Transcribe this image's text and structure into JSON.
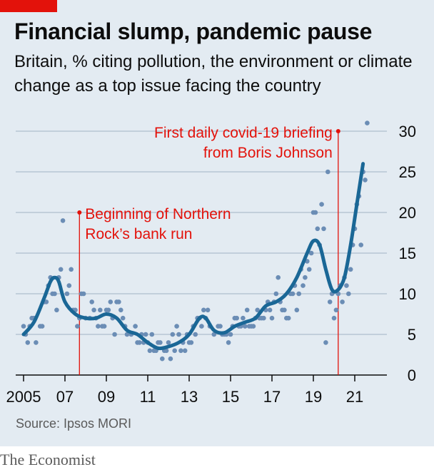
{
  "header": {
    "title": "Financial slump, pandemic pause",
    "subtitle": "Britain, % citing pollution, the environment or climate change as a top issue facing the country"
  },
  "footer": {
    "source": "Source: Ipsos MORI",
    "brand": "The Economist"
  },
  "colors": {
    "background": "#e3ebf2",
    "line": "#1a6796",
    "dots": "#6b8db5",
    "annotation": "#e3120b",
    "grid": "#b7c6d3",
    "brand_tag": "#e3120b"
  },
  "chart_data": {
    "type": "scatter",
    "title": "Financial slump, pandemic pause",
    "subtitle": "Britain, % citing pollution, the environment or climate change as a top issue facing the country",
    "xlim": [
      2004.6,
      2022.6
    ],
    "ylim": [
      0,
      32
    ],
    "y_ticks": [
      0,
      5,
      10,
      15,
      20,
      25,
      30
    ],
    "x_ticks": [
      {
        "value": 2005,
        "label": "2005"
      },
      {
        "value": 2007,
        "label": "07"
      },
      {
        "value": 2009,
        "label": "09"
      },
      {
        "value": 2011,
        "label": "11"
      },
      {
        "value": 2013,
        "label": "13"
      },
      {
        "value": 2015,
        "label": "15"
      },
      {
        "value": 2017,
        "label": "17"
      },
      {
        "value": 2019,
        "label": "19"
      },
      {
        "value": 2021,
        "label": "21"
      }
    ],
    "grid": "horizontal",
    "annotations": [
      {
        "x": 2007.7,
        "y": 20,
        "lines": [
          "Beginning of Northern",
          "Rock’s bank run"
        ]
      },
      {
        "x": 2020.2,
        "y": 30,
        "lines": [
          "First daily covid-19 briefing",
          "from Boris Johnson"
        ]
      }
    ],
    "series": [
      {
        "kind": "points",
        "points": [
          [
            2005.0,
            6
          ],
          [
            2005.1,
            5
          ],
          [
            2005.2,
            4
          ],
          [
            2005.3,
            6
          ],
          [
            2005.4,
            7
          ],
          [
            2005.5,
            7
          ],
          [
            2005.6,
            4
          ],
          [
            2005.8,
            6
          ],
          [
            2005.9,
            6
          ],
          [
            2006.0,
            9
          ],
          [
            2006.1,
            9
          ],
          [
            2006.2,
            11
          ],
          [
            2006.3,
            12
          ],
          [
            2006.4,
            10
          ],
          [
            2006.5,
            10
          ],
          [
            2006.6,
            8
          ],
          [
            2006.7,
            12
          ],
          [
            2006.8,
            13
          ],
          [
            2006.9,
            19
          ],
          [
            2007.1,
            10
          ],
          [
            2007.2,
            11
          ],
          [
            2007.3,
            13
          ],
          [
            2007.4,
            8
          ],
          [
            2007.5,
            8
          ],
          [
            2007.6,
            6
          ],
          [
            2007.7,
            7
          ],
          [
            2007.8,
            10
          ],
          [
            2007.9,
            10
          ],
          [
            2008.0,
            7
          ],
          [
            2008.2,
            7
          ],
          [
            2008.3,
            9
          ],
          [
            2008.4,
            8
          ],
          [
            2008.5,
            7
          ],
          [
            2008.6,
            6
          ],
          [
            2008.7,
            8
          ],
          [
            2008.8,
            6
          ],
          [
            2008.9,
            6
          ],
          [
            2009.0,
            8
          ],
          [
            2009.1,
            8
          ],
          [
            2009.2,
            9
          ],
          [
            2009.3,
            7
          ],
          [
            2009.4,
            5
          ],
          [
            2009.5,
            9
          ],
          [
            2009.6,
            9
          ],
          [
            2009.7,
            8
          ],
          [
            2009.8,
            7
          ],
          [
            2009.9,
            6
          ],
          [
            2010.0,
            5
          ],
          [
            2010.2,
            5
          ],
          [
            2010.4,
            6
          ],
          [
            2010.5,
            4
          ],
          [
            2010.6,
            4
          ],
          [
            2010.7,
            5
          ],
          [
            2010.8,
            4
          ],
          [
            2010.9,
            5
          ],
          [
            2011.0,
            4
          ],
          [
            2011.1,
            3
          ],
          [
            2011.2,
            5
          ],
          [
            2011.3,
            3
          ],
          [
            2011.4,
            3
          ],
          [
            2011.5,
            4
          ],
          [
            2011.6,
            4
          ],
          [
            2011.7,
            2
          ],
          [
            2011.8,
            3
          ],
          [
            2011.9,
            3
          ],
          [
            2012.0,
            4
          ],
          [
            2012.1,
            2
          ],
          [
            2012.2,
            5
          ],
          [
            2012.3,
            3
          ],
          [
            2012.4,
            6
          ],
          [
            2012.5,
            5
          ],
          [
            2012.6,
            3
          ],
          [
            2012.7,
            4
          ],
          [
            2012.8,
            3
          ],
          [
            2012.9,
            5
          ],
          [
            2013.0,
            4
          ],
          [
            2013.1,
            4
          ],
          [
            2013.2,
            6
          ],
          [
            2013.3,
            5
          ],
          [
            2013.4,
            7
          ],
          [
            2013.5,
            7
          ],
          [
            2013.6,
            6
          ],
          [
            2013.7,
            8
          ],
          [
            2013.8,
            7
          ],
          [
            2013.9,
            8
          ],
          [
            2014.0,
            6
          ],
          [
            2014.2,
            5
          ],
          [
            2014.4,
            6
          ],
          [
            2014.5,
            6
          ],
          [
            2014.6,
            5
          ],
          [
            2014.7,
            5
          ],
          [
            2014.8,
            5
          ],
          [
            2014.9,
            4
          ],
          [
            2015.0,
            5
          ],
          [
            2015.1,
            6
          ],
          [
            2015.2,
            7
          ],
          [
            2015.3,
            7
          ],
          [
            2015.4,
            6
          ],
          [
            2015.5,
            6
          ],
          [
            2015.6,
            7
          ],
          [
            2015.7,
            6
          ],
          [
            2015.8,
            8
          ],
          [
            2015.9,
            6
          ],
          [
            2016.0,
            6
          ],
          [
            2016.1,
            6
          ],
          [
            2016.2,
            7
          ],
          [
            2016.3,
            8
          ],
          [
            2016.4,
            7
          ],
          [
            2016.5,
            7
          ],
          [
            2016.6,
            7
          ],
          [
            2016.7,
            8
          ],
          [
            2016.8,
            9
          ],
          [
            2016.9,
            8
          ],
          [
            2017.0,
            7
          ],
          [
            2017.1,
            9
          ],
          [
            2017.2,
            10
          ],
          [
            2017.3,
            12
          ],
          [
            2017.4,
            9
          ],
          [
            2017.5,
            8
          ],
          [
            2017.6,
            8
          ],
          [
            2017.7,
            7
          ],
          [
            2017.8,
            7
          ],
          [
            2017.9,
            10
          ],
          [
            2018.0,
            10
          ],
          [
            2018.1,
            11
          ],
          [
            2018.2,
            8
          ],
          [
            2018.3,
            10
          ],
          [
            2018.4,
            13
          ],
          [
            2018.5,
            11
          ],
          [
            2018.6,
            12
          ],
          [
            2018.7,
            14
          ],
          [
            2018.8,
            13
          ],
          [
            2018.9,
            15
          ],
          [
            2019.0,
            20
          ],
          [
            2019.1,
            20
          ],
          [
            2019.2,
            18
          ],
          [
            2019.3,
            16
          ],
          [
            2019.4,
            21
          ],
          [
            2019.5,
            18
          ],
          [
            2019.6,
            4
          ],
          [
            2019.7,
            25
          ],
          [
            2019.8,
            9
          ],
          [
            2019.9,
            10
          ],
          [
            2020.0,
            7
          ],
          [
            2020.1,
            8
          ],
          [
            2020.2,
            10
          ],
          [
            2020.3,
            11
          ],
          [
            2020.4,
            9
          ],
          [
            2020.5,
            12
          ],
          [
            2020.6,
            11
          ],
          [
            2020.7,
            10
          ],
          [
            2020.8,
            13
          ],
          [
            2020.9,
            16
          ],
          [
            2021.0,
            18
          ],
          [
            2021.1,
            21
          ],
          [
            2021.2,
            22
          ],
          [
            2021.3,
            16
          ],
          [
            2021.4,
            25
          ],
          [
            2021.5,
            24
          ],
          [
            2021.6,
            31
          ]
        ]
      },
      {
        "kind": "trend",
        "points": [
          [
            2005.0,
            5
          ],
          [
            2005.5,
            6.5
          ],
          [
            2006.0,
            9.5
          ],
          [
            2006.3,
            11.5
          ],
          [
            2006.5,
            12
          ],
          [
            2006.7,
            11.5
          ],
          [
            2007.0,
            9
          ],
          [
            2007.5,
            7.5
          ],
          [
            2008.0,
            7
          ],
          [
            2008.5,
            7
          ],
          [
            2009.0,
            7.5
          ],
          [
            2009.5,
            7
          ],
          [
            2010.0,
            5.5
          ],
          [
            2010.5,
            5
          ],
          [
            2011.0,
            4
          ],
          [
            2011.5,
            3.3
          ],
          [
            2012.0,
            3.5
          ],
          [
            2012.5,
            4
          ],
          [
            2013.0,
            5
          ],
          [
            2013.5,
            7
          ],
          [
            2013.8,
            7
          ],
          [
            2014.2,
            5.5
          ],
          [
            2014.7,
            5.2
          ],
          [
            2015.2,
            6
          ],
          [
            2015.7,
            6.5
          ],
          [
            2016.2,
            7
          ],
          [
            2016.7,
            8.5
          ],
          [
            2017.2,
            9
          ],
          [
            2017.7,
            10
          ],
          [
            2018.2,
            12
          ],
          [
            2018.7,
            15
          ],
          [
            2019.0,
            16.5
          ],
          [
            2019.3,
            16
          ],
          [
            2019.6,
            13
          ],
          [
            2019.9,
            10.5
          ],
          [
            2020.2,
            10.5
          ],
          [
            2020.5,
            12
          ],
          [
            2020.8,
            16
          ],
          [
            2021.1,
            21
          ],
          [
            2021.4,
            26
          ]
        ]
      }
    ]
  }
}
